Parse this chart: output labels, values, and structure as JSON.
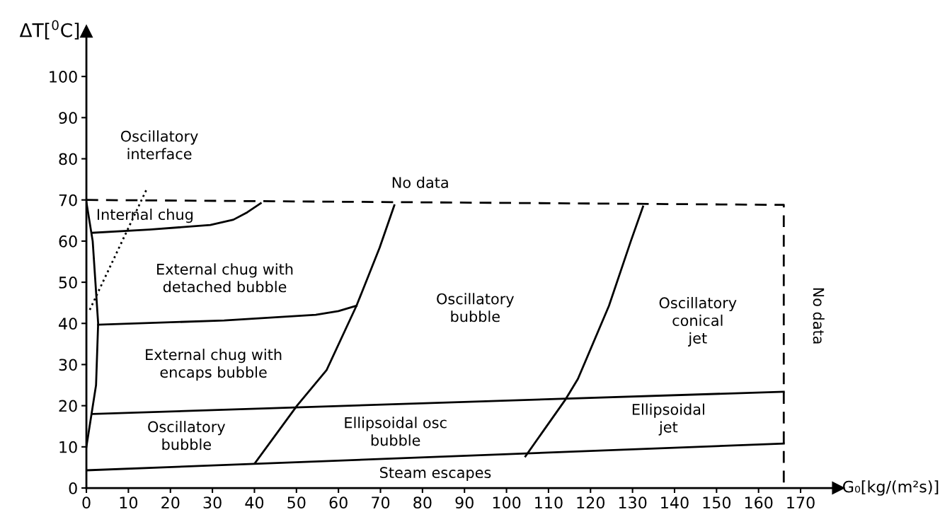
{
  "chart_data": {
    "type": "line",
    "xlabel": "G₀[kg/(m²s)]",
    "ylabel": "ΔT[$^{0}$C]",
    "xlim": [
      0,
      179
    ],
    "ylim": [
      0,
      111
    ],
    "xticks": [
      0,
      10,
      20,
      30,
      40,
      50,
      60,
      70,
      80,
      90,
      100,
      110,
      120,
      130,
      140,
      150,
      160,
      170
    ],
    "yticks": [
      0,
      10,
      20,
      30,
      40,
      50,
      60,
      70,
      80,
      90,
      100
    ],
    "grid": false,
    "legend": false,
    "marker": "none",
    "series": [
      {
        "color": "#000000",
        "line_style": "dashed",
        "x": [
          0,
          166,
          166
        ],
        "values": [
          70,
          68.8,
          0
        ]
      },
      {
        "color": "#000000",
        "line_style": "solid",
        "x": [
          1.3,
          15,
          29.5,
          35,
          38.3,
          41.5
        ],
        "values": [
          62,
          62.8,
          63.9,
          65.2,
          67,
          69.2
        ]
      },
      {
        "color": "#000000",
        "line_style": "solid",
        "x": [
          2.8,
          32.8,
          54.6,
          60,
          64.3
        ],
        "values": [
          39.7,
          40.7,
          42.1,
          43,
          44.3
        ]
      },
      {
        "color": "#000000",
        "line_style": "solid",
        "x": [
          1.5,
          166
        ],
        "values": [
          18,
          23.4
        ]
      },
      {
        "color": "#000000",
        "line_style": "solid",
        "x": [
          0,
          166
        ],
        "values": [
          4.3,
          10.8
        ]
      },
      {
        "color": "#000000",
        "line_style": "solid",
        "x": [
          40.1,
          50.2,
          57.2,
          64.3,
          69.8,
          73.3
        ],
        "values": [
          6,
          20.1,
          28.7,
          44.3,
          58.4,
          68.7
        ]
      },
      {
        "color": "#000000",
        "line_style": "solid",
        "x": [
          104.5,
          114.1,
          117,
          124.4,
          129.6,
          132.5
        ],
        "values": [
          7.7,
          21.6,
          26.5,
          44.3,
          60,
          68.4
        ]
      },
      {
        "color": "#000000",
        "line_style": "solid",
        "x": [
          0,
          1.5,
          2.8,
          2.3,
          0
        ],
        "values": [
          69.5,
          60,
          40,
          25,
          10
        ]
      },
      {
        "color": "#000000",
        "line_style": "dotted",
        "x": [
          0.8,
          14.3
        ],
        "values": [
          43.3,
          72.5
        ]
      }
    ],
    "annotations": [
      "Oscillatory\ninterface",
      "No data",
      "Internal chug",
      "External chug with\ndetached bubble",
      "External chug with\nencaps bubble",
      "Oscillatory\nbubble",
      "Ellipsoidal osc\nbubble",
      "Oscillatory\nbubble",
      "Oscillatory\nconical\njet",
      "Ellipsoidal\njet",
      "Steam escapes",
      "No data"
    ]
  }
}
